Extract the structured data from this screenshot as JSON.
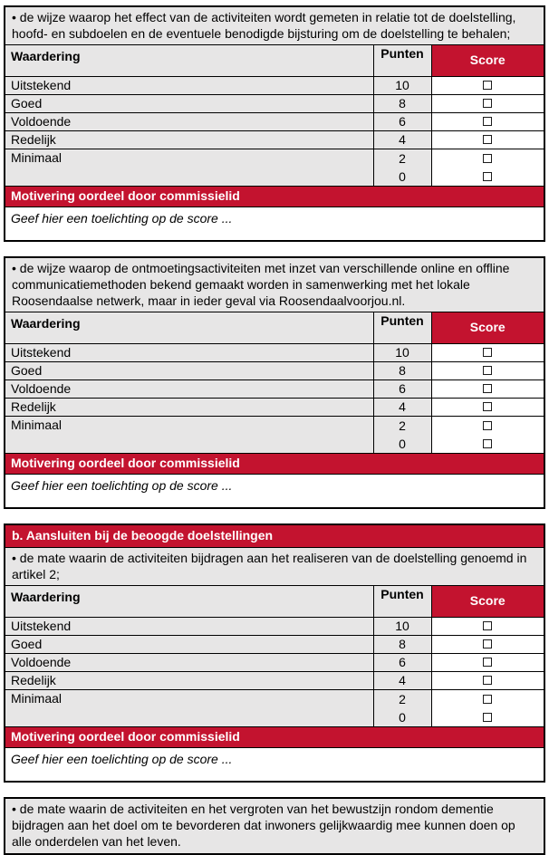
{
  "colors": {
    "accent_red": "#c3132f",
    "shaded_cell_grey": "#e7e6e6",
    "border_black": "#000000"
  },
  "blocks": {
    "b1": {
      "bullet": "• de wijze waarop het effect van de activiteiten wordt gemeten in relatie tot de doelstelling, hoofd- en subdoelen en de eventuele benodigde bijsturing om de doelstelling te behalen;"
    },
    "b2": {
      "bullet": "• de wijze waarop de ontmoetingsactiviteiten met inzet van verschillende online en offline communicatiemethoden bekend gemaakt worden in samenwerking met het lokale Roosendaalse netwerk, maar in ieder geval via Roosendaalvoorjou.nl."
    },
    "b3": {
      "heading": "b. Aansluiten bij de beoogde doelstellingen",
      "bullet": "• de mate waarin de activiteiten bijdragen aan het realiseren van de doelstelling genoemd in artikel 2;"
    },
    "b4": {
      "bullet": "• de mate waarin de activiteiten en het vergroten van het bewustzijn rondom dementie bijdragen aan het doel om te bevorderen dat inwoners gelijkwaardig mee kunnen doen op alle onderdelen van het leven."
    }
  },
  "rating": {
    "columns": {
      "waardering": "Waardering",
      "punten": "Punten",
      "score": "Score"
    },
    "rows": [
      {
        "label": "Uitstekend",
        "points": "10"
      },
      {
        "label": "Goed",
        "points": "8"
      },
      {
        "label": "Voldoende",
        "points": "6"
      },
      {
        "label": "Redelijk",
        "points": "4"
      }
    ],
    "minimaal": {
      "label": "Minimaal",
      "points_top": "2",
      "points_bottom": "0"
    },
    "motivering_label": "Motivering oordeel door commissielid",
    "toelichting_note": "Geef hier een toelichting op de score ..."
  }
}
